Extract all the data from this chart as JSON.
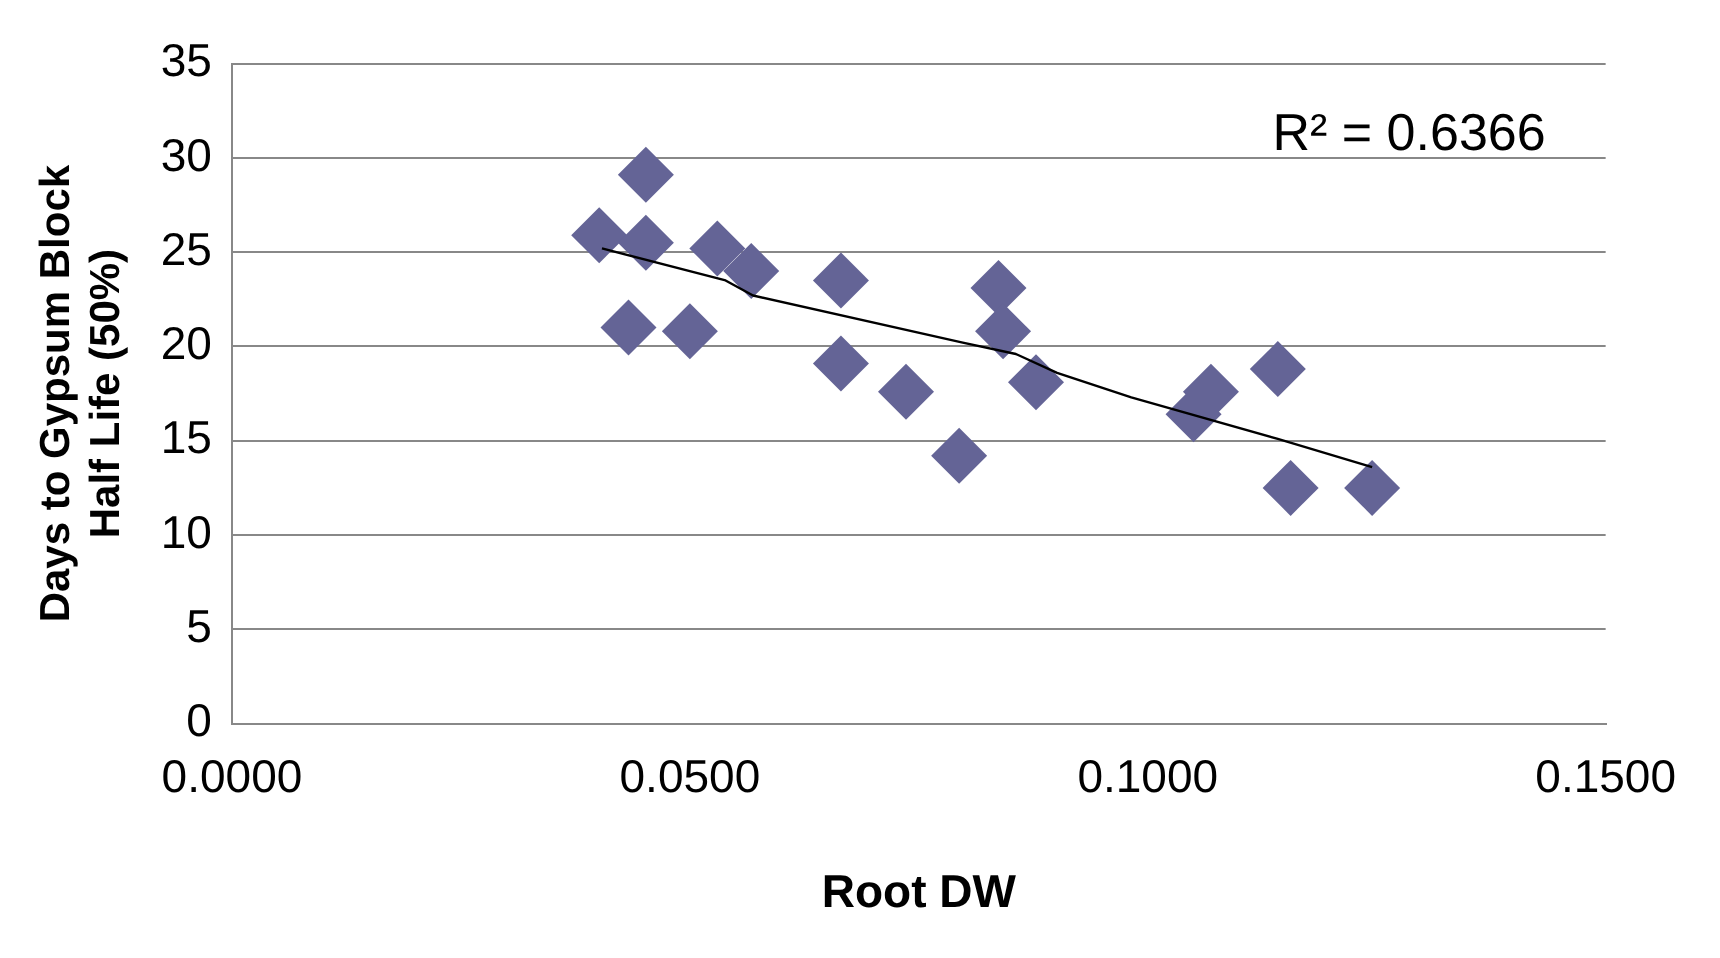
{
  "chart_data": {
    "type": "scatter",
    "xlabel": "Root DW",
    "ylabel": "Days to Gypsum Block Half Life (50%)",
    "annotations": [
      "R² = 0.6366"
    ],
    "xlim": [
      0,
      0.15
    ],
    "xticks": [
      {
        "value": 0,
        "label": "0.0000"
      },
      {
        "value": 0.05,
        "label": "0.0500"
      },
      {
        "value": 0.1,
        "label": "0.1000"
      },
      {
        "value": 0.15,
        "label": "0.1500"
      }
    ],
    "ylim": [
      0,
      35
    ],
    "yticks": [
      0,
      5,
      10,
      15,
      20,
      25,
      30,
      35
    ],
    "grid": "y",
    "legend": false,
    "marker": "diamond",
    "series": [
      {
        "color": "#646496",
        "x": [
          0.0401,
          0.0452,
          0.0452,
          0.0433,
          0.05,
          0.053,
          0.0567,
          0.0665,
          0.0665,
          0.0736,
          0.0794,
          0.0837,
          0.0842,
          0.0878,
          0.105,
          0.1069,
          0.1142,
          0.1156,
          0.1245
        ],
        "values": [
          25.9,
          29.1,
          25.5,
          21.0,
          20.8,
          25.2,
          24.0,
          23.5,
          19.1,
          17.6,
          14.2,
          23.1,
          20.8,
          18.1,
          16.4,
          17.6,
          18.8,
          12.5,
          12.5
        ]
      },
      {
        "type": "line",
        "color": "#000000",
        "marker": "none",
        "x": [
          0.0404,
          0.0539,
          0.0569,
          0.0798,
          0.0856,
          0.0901,
          0.0982,
          0.1142,
          0.1245
        ],
        "values": [
          25.2,
          23.5,
          22.7,
          20.2,
          19.6,
          18.6,
          17.3,
          15.1,
          13.6
        ]
      }
    ]
  }
}
